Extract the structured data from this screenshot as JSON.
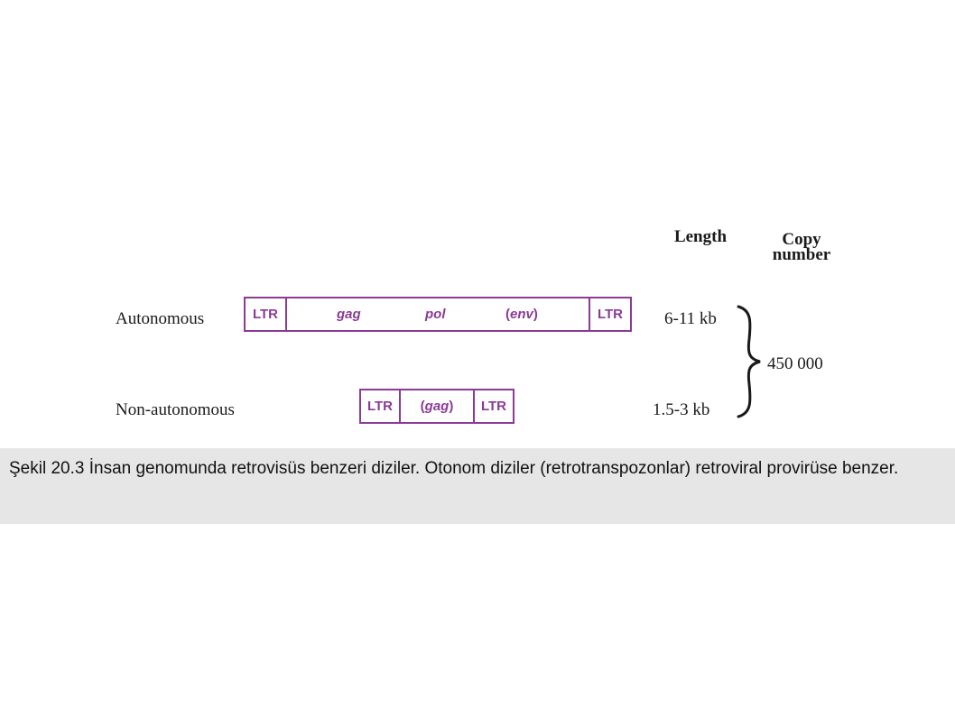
{
  "headers": {
    "length": "Length",
    "copy_number_line1": "Copy",
    "copy_number_line2": "number"
  },
  "rows": [
    {
      "label": "Autonomous",
      "ltr_left": "LTR",
      "genes": [
        "gag",
        "pol",
        "env"
      ],
      "ltr_right": "LTR",
      "length": "6-11 kb"
    },
    {
      "label": "Non-autonomous",
      "ltr_left": "LTR",
      "genes": [
        "gag"
      ],
      "ltr_right": "LTR",
      "length": "1.5-3 kb"
    }
  ],
  "copy_number": "450 000",
  "caption": "Şekil 20.3 İnsan genomunda retrovisüs benzeri diziler. Otonom diziler (retrotranspozonlar) retroviral provirüse benzer.",
  "colors": {
    "element_outline": "#8b3a96",
    "caption_background": "#e6e6e6"
  }
}
